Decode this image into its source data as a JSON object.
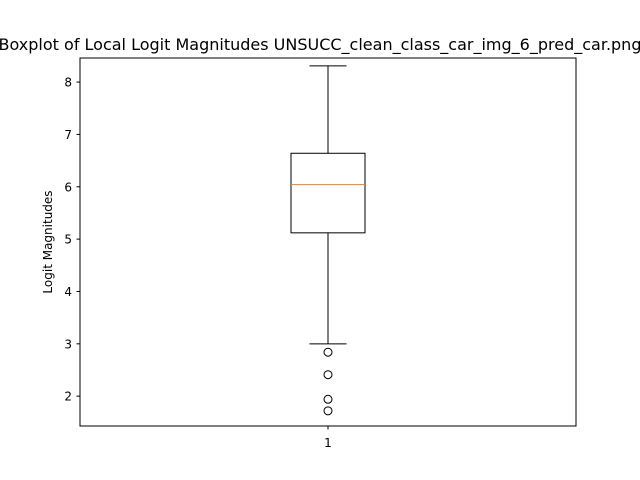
{
  "chart_data": {
    "type": "boxplot",
    "title": "Boxplot of Local Logit Magnitudes UNSUCC_clean_class_car_img_6_pred_car.png",
    "xlabel": "",
    "ylabel": "Logit Magnitudes",
    "categories": [
      "1"
    ],
    "ylim": [
      1.43,
      8.46
    ],
    "yticks": [
      2,
      3,
      4,
      5,
      6,
      7,
      8
    ],
    "grid": false,
    "boxes": [
      {
        "category": "1",
        "whisker_low": 3.0,
        "q1": 5.12,
        "median": 6.04,
        "q3": 6.64,
        "whisker_high": 8.31,
        "outliers": [
          2.84,
          2.41,
          1.94,
          1.72
        ]
      }
    ],
    "colors": {
      "box": "#000000",
      "median": "#ff7f0e",
      "outlier_edge": "#000000"
    }
  }
}
